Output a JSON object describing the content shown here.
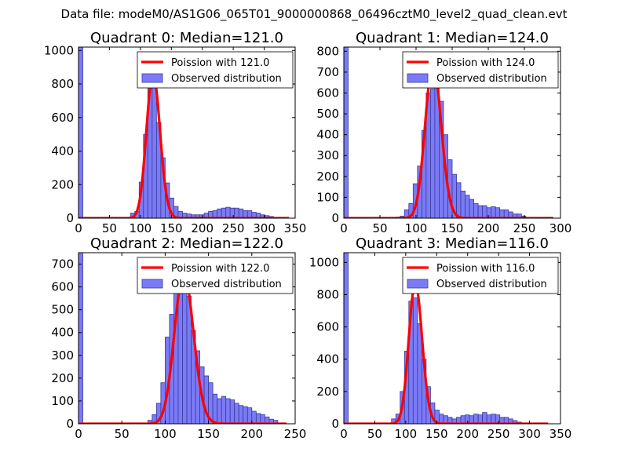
{
  "suptitle": "Data file: modeM0/AS1G06_065T01_9000000868_06496cztM0_level2_quad_clean.evt",
  "colors": {
    "bar_fill": "#7b7bf7",
    "bar_edge": "#3a3a9a",
    "curve": "#ff0000"
  },
  "chart_data": [
    {
      "type": "bar",
      "title": "Quadrant 0: Median=121.0",
      "xlim": [
        0,
        350
      ],
      "ylim": [
        0,
        1020
      ],
      "xticks": [
        0,
        50,
        100,
        150,
        200,
        250,
        300,
        350
      ],
      "yticks": [
        0,
        200,
        400,
        600,
        800,
        1000
      ],
      "bin_width": 7,
      "bins": [
        {
          "x": 0,
          "y": 1020
        },
        {
          "x": 77,
          "y": 5
        },
        {
          "x": 84,
          "y": 30
        },
        {
          "x": 91,
          "y": 40
        },
        {
          "x": 98,
          "y": 215
        },
        {
          "x": 105,
          "y": 500
        },
        {
          "x": 112,
          "y": 780
        },
        {
          "x": 119,
          "y": 850
        },
        {
          "x": 126,
          "y": 570
        },
        {
          "x": 133,
          "y": 360
        },
        {
          "x": 140,
          "y": 210
        },
        {
          "x": 147,
          "y": 120
        },
        {
          "x": 154,
          "y": 70
        },
        {
          "x": 161,
          "y": 40
        },
        {
          "x": 168,
          "y": 30
        },
        {
          "x": 175,
          "y": 25
        },
        {
          "x": 182,
          "y": 20
        },
        {
          "x": 189,
          "y": 20
        },
        {
          "x": 196,
          "y": 20
        },
        {
          "x": 203,
          "y": 30
        },
        {
          "x": 210,
          "y": 40
        },
        {
          "x": 217,
          "y": 45
        },
        {
          "x": 224,
          "y": 55
        },
        {
          "x": 231,
          "y": 60
        },
        {
          "x": 238,
          "y": 65
        },
        {
          "x": 245,
          "y": 60
        },
        {
          "x": 252,
          "y": 60
        },
        {
          "x": 259,
          "y": 55
        },
        {
          "x": 266,
          "y": 45
        },
        {
          "x": 273,
          "y": 45
        },
        {
          "x": 280,
          "y": 35
        },
        {
          "x": 287,
          "y": 30
        },
        {
          "x": 294,
          "y": 20
        },
        {
          "x": 301,
          "y": 15
        },
        {
          "x": 308,
          "y": 10
        },
        {
          "x": 315,
          "y": 5
        }
      ],
      "poisson": {
        "mean": 121.0,
        "scale": 860,
        "x_range": [
          0,
          340
        ]
      },
      "legend": [
        "Poission with 121.0",
        "Observed distribution"
      ]
    },
    {
      "type": "bar",
      "title": "Quadrant 1: Median=124.0",
      "xlim": [
        0,
        300
      ],
      "ylim": [
        0,
        820
      ],
      "xticks": [
        0,
        50,
        100,
        150,
        200,
        250,
        300
      ],
      "yticks": [
        0,
        100,
        200,
        300,
        400,
        500,
        600,
        700,
        800
      ],
      "bin_width": 6,
      "bins": [
        {
          "x": 0,
          "y": 820
        },
        {
          "x": 72,
          "y": 5
        },
        {
          "x": 78,
          "y": 10
        },
        {
          "x": 84,
          "y": 40
        },
        {
          "x": 90,
          "y": 70
        },
        {
          "x": 96,
          "y": 165
        },
        {
          "x": 102,
          "y": 250
        },
        {
          "x": 108,
          "y": 420
        },
        {
          "x": 114,
          "y": 600
        },
        {
          "x": 120,
          "y": 620
        },
        {
          "x": 126,
          "y": 720
        },
        {
          "x": 132,
          "y": 560
        },
        {
          "x": 138,
          "y": 400
        },
        {
          "x": 144,
          "y": 280
        },
        {
          "x": 150,
          "y": 210
        },
        {
          "x": 156,
          "y": 170
        },
        {
          "x": 162,
          "y": 130
        },
        {
          "x": 168,
          "y": 110
        },
        {
          "x": 174,
          "y": 90
        },
        {
          "x": 180,
          "y": 70
        },
        {
          "x": 186,
          "y": 60
        },
        {
          "x": 192,
          "y": 60
        },
        {
          "x": 198,
          "y": 50
        },
        {
          "x": 204,
          "y": 55
        },
        {
          "x": 210,
          "y": 50
        },
        {
          "x": 216,
          "y": 40
        },
        {
          "x": 222,
          "y": 40
        },
        {
          "x": 228,
          "y": 30
        },
        {
          "x": 234,
          "y": 20
        },
        {
          "x": 240,
          "y": 20
        },
        {
          "x": 246,
          "y": 10
        }
      ],
      "poisson": {
        "mean": 124.0,
        "scale": 740,
        "x_range": [
          0,
          290
        ]
      },
      "legend": [
        "Poission with 124.0",
        "Observed distribution"
      ]
    },
    {
      "type": "bar",
      "title": "Quadrant 2: Median=122.0",
      "xlim": [
        0,
        250
      ],
      "ylim": [
        0,
        750
      ],
      "xticks": [
        0,
        50,
        100,
        150,
        200,
        250
      ],
      "yticks": [
        0,
        100,
        200,
        300,
        400,
        500,
        600,
        700
      ],
      "bin_width": 5,
      "bins": [
        {
          "x": 0,
          "y": 750
        },
        {
          "x": 80,
          "y": 15
        },
        {
          "x": 85,
          "y": 40
        },
        {
          "x": 90,
          "y": 90
        },
        {
          "x": 95,
          "y": 180
        },
        {
          "x": 100,
          "y": 380
        },
        {
          "x": 105,
          "y": 480
        },
        {
          "x": 110,
          "y": 650
        },
        {
          "x": 115,
          "y": 610
        },
        {
          "x": 120,
          "y": 640
        },
        {
          "x": 125,
          "y": 560
        },
        {
          "x": 130,
          "y": 410
        },
        {
          "x": 135,
          "y": 320
        },
        {
          "x": 140,
          "y": 250
        },
        {
          "x": 145,
          "y": 210
        },
        {
          "x": 150,
          "y": 180
        },
        {
          "x": 155,
          "y": 130
        },
        {
          "x": 160,
          "y": 110
        },
        {
          "x": 165,
          "y": 120
        },
        {
          "x": 170,
          "y": 110
        },
        {
          "x": 175,
          "y": 105
        },
        {
          "x": 180,
          "y": 90
        },
        {
          "x": 185,
          "y": 80
        },
        {
          "x": 190,
          "y": 75
        },
        {
          "x": 195,
          "y": 70
        },
        {
          "x": 200,
          "y": 55
        },
        {
          "x": 205,
          "y": 45
        },
        {
          "x": 210,
          "y": 40
        },
        {
          "x": 215,
          "y": 30
        },
        {
          "x": 220,
          "y": 20
        },
        {
          "x": 225,
          "y": 15
        }
      ],
      "poisson": {
        "mean": 122.0,
        "scale": 660,
        "x_range": [
          0,
          240
        ]
      },
      "legend": [
        "Poission with 122.0",
        "Observed distribution"
      ]
    },
    {
      "type": "bar",
      "title": "Quadrant 3: Median=116.0",
      "xlim": [
        0,
        350
      ],
      "ylim": [
        0,
        1060
      ],
      "xticks": [
        0,
        50,
        100,
        150,
        200,
        250,
        300,
        350
      ],
      "yticks": [
        0,
        200,
        400,
        600,
        800,
        1000
      ],
      "bin_width": 7,
      "bins": [
        {
          "x": 0,
          "y": 1060
        },
        {
          "x": 70,
          "y": 5
        },
        {
          "x": 77,
          "y": 30
        },
        {
          "x": 84,
          "y": 60
        },
        {
          "x": 91,
          "y": 200
        },
        {
          "x": 98,
          "y": 450
        },
        {
          "x": 105,
          "y": 760
        },
        {
          "x": 112,
          "y": 780
        },
        {
          "x": 119,
          "y": 620
        },
        {
          "x": 126,
          "y": 400
        },
        {
          "x": 133,
          "y": 230
        },
        {
          "x": 140,
          "y": 130
        },
        {
          "x": 147,
          "y": 85
        },
        {
          "x": 154,
          "y": 60
        },
        {
          "x": 161,
          "y": 50
        },
        {
          "x": 168,
          "y": 40
        },
        {
          "x": 175,
          "y": 30
        },
        {
          "x": 182,
          "y": 40
        },
        {
          "x": 189,
          "y": 50
        },
        {
          "x": 196,
          "y": 55
        },
        {
          "x": 203,
          "y": 50
        },
        {
          "x": 210,
          "y": 60
        },
        {
          "x": 217,
          "y": 55
        },
        {
          "x": 224,
          "y": 70
        },
        {
          "x": 231,
          "y": 55
        },
        {
          "x": 238,
          "y": 60
        },
        {
          "x": 245,
          "y": 55
        },
        {
          "x": 252,
          "y": 40
        },
        {
          "x": 259,
          "y": 40
        },
        {
          "x": 266,
          "y": 30
        },
        {
          "x": 273,
          "y": 20
        },
        {
          "x": 280,
          "y": 10
        }
      ],
      "poisson": {
        "mean": 116.0,
        "scale": 870,
        "x_range": [
          0,
          330
        ]
      },
      "legend": [
        "Poission with 116.0",
        "Observed distribution"
      ]
    }
  ]
}
